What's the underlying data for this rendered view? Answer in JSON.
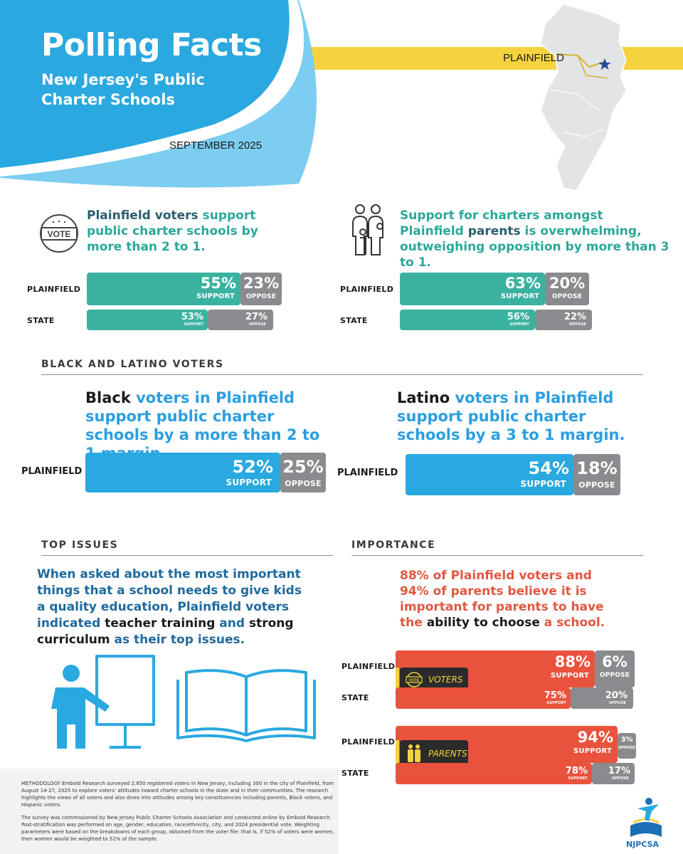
{
  "header": {
    "title": "Polling Facts",
    "subtitle": "New Jersey's Public\nCharter Schools",
    "date": "SEPTEMBER 2025",
    "city_tag": "PLAINFIELD",
    "colors": {
      "blue": "#2aa8e0",
      "yellow": "#f4d33e"
    }
  },
  "voters_support": {
    "icon": "vote-icon",
    "statement": {
      "k1": "Plainfield",
      "t1": " voters ",
      "k2": "support",
      "t2": " public charter schools by more than 2 to 1."
    },
    "rows": [
      {
        "label": "PLAINFIELD",
        "support": "55%",
        "support_label": "SUPPORT",
        "oppose": "23%",
        "oppose_label": "OPPOSE"
      },
      {
        "label": "STATE",
        "support": "53%",
        "support_label": "SUPPORT",
        "oppose": "27%",
        "oppose_label": "OPPOSE"
      }
    ]
  },
  "parents_support": {
    "icon": "family-icon",
    "statement": {
      "t1": "Support for charters amongst Plainfield ",
      "k1": "parents",
      "t2": " is overwhelming, outweighing opposition by more than 3 to 1."
    },
    "rows": [
      {
        "label": "PLAINFIELD",
        "support": "63%",
        "support_label": "SUPPORT",
        "oppose": "20%",
        "oppose_label": "OPPOSE"
      },
      {
        "label": "STATE",
        "support": "56%",
        "support_label": "SUPPORT",
        "oppose": "22%",
        "oppose_label": "OPPOSE"
      }
    ]
  },
  "black_latino": {
    "heading": "BLACK AND LATINO VOTERS",
    "black": {
      "statement": {
        "k1": "Black",
        "t1": " voters in Plainfield support public charter schools by a more than 2 to 1 margin."
      },
      "row": {
        "label": "PLAINFIELD",
        "support": "52%",
        "support_label": "SUPPORT",
        "oppose": "25%",
        "oppose_label": "OPPOSE"
      }
    },
    "latino": {
      "statement": {
        "k1": "Latino",
        "t1": " voters in Plainfield support public charter schools by a 3 to 1 margin."
      },
      "row": {
        "label": "PLAINFIELD",
        "support": "54%",
        "support_label": "SUPPORT",
        "oppose": "18%",
        "oppose_label": "OPPOSE"
      }
    }
  },
  "top_issues": {
    "heading": "TOP ISSUES",
    "statement": {
      "t1": "When asked about the most important things that a school needs to give kids a quality education, Plainfield voters indicated ",
      "k1": "teacher training",
      "t2": " and ",
      "k2": "strong curriculum",
      "t3": " as their top issues."
    },
    "icons": [
      "teacher-icon",
      "book-icon"
    ]
  },
  "importance": {
    "heading": "IMPORTANCE",
    "statement": {
      "t1": "88% of Plainfield voters and 94% of parents believe it is important for parents to have the ",
      "k1": "ability to choose",
      "t2": " a school."
    },
    "voters": {
      "badge": "VOTERS",
      "rows": [
        {
          "label": "PLAINFIELD",
          "support": "88%",
          "support_label": "SUPPORT",
          "oppose": "6%",
          "oppose_label": "OPPOSE"
        },
        {
          "label": "STATE",
          "support": "75%",
          "support_label": "SUPPORT",
          "oppose": "20%",
          "oppose_label": "OPPOSE"
        }
      ]
    },
    "parents": {
      "badge": "PARENTS",
      "rows": [
        {
          "label": "PLAINFIELD",
          "support": "94%",
          "support_label": "SUPPORT",
          "oppose": "3%",
          "oppose_label": "OPPOSE"
        },
        {
          "label": "STATE",
          "support": "78%",
          "support_label": "SUPPORT",
          "oppose": "17%",
          "oppose_label": "OPPOSE"
        }
      ]
    }
  },
  "methodology": {
    "p1": "METHODOLOGY Embold Research surveyed 2,850 registered voters in New Jersey, including 300 in the city of Plainfield, from August 14-27, 2025 to explore voters' attitudes toward charter schools in the state and in their communities. The research highlights the views of all voters and also dives into attitudes among key constituencies including parents, Black voters, and Hispanic voters.",
    "p2": "The survey was commissioned by New Jersey Public Charter Schools Association and conducted online by Embold Research. Post-stratification was performed on age, gender, education, race/ethnicity, city, and 2024 presidential vote. Weighting parameters were based on the breakdowns of each group, obtained from the voter file: that is, if 52% of voters were women, then women would be weighted to 52% of the sample."
  },
  "logo": {
    "text": "NJPCSA"
  }
}
